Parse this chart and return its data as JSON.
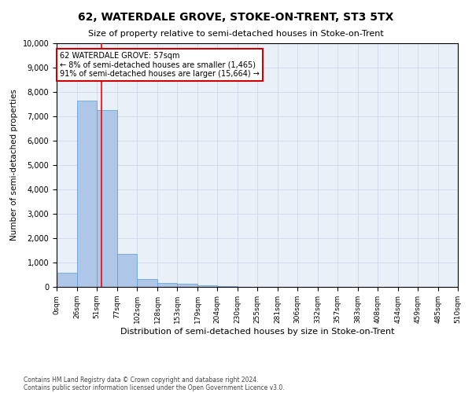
{
  "title": "62, WATERDALE GROVE, STOKE-ON-TRENT, ST3 5TX",
  "subtitle": "Size of property relative to semi-detached houses in Stoke-on-Trent",
  "xlabel": "Distribution of semi-detached houses by size in Stoke-on-Trent",
  "ylabel": "Number of semi-detached properties",
  "footer_line1": "Contains HM Land Registry data © Crown copyright and database right 2024.",
  "footer_line2": "Contains public sector information licensed under the Open Government Licence v3.0.",
  "annotation_title": "62 WATERDALE GROVE: 57sqm",
  "annotation_line1": "← 8% of semi-detached houses are smaller (1,465)",
  "annotation_line2": "91% of semi-detached houses are larger (15,664) →",
  "property_size": 57,
  "bin_edges": [
    0,
    26,
    51,
    77,
    102,
    128,
    153,
    179,
    204,
    230,
    255,
    281,
    306,
    332,
    357,
    383,
    408,
    434,
    459,
    485,
    510
  ],
  "bar_heights": [
    580,
    7650,
    7250,
    1360,
    310,
    170,
    120,
    80,
    30,
    0,
    0,
    0,
    0,
    0,
    0,
    0,
    0,
    0,
    0,
    0
  ],
  "bar_color": "#aec6e8",
  "bar_edge_color": "#5b9bd5",
  "red_line_x": 57,
  "annotation_box_color": "#ffffff",
  "annotation_box_edge_color": "#cc0000",
  "ylim": [
    0,
    10000
  ],
  "yticks": [
    0,
    1000,
    2000,
    3000,
    4000,
    5000,
    6000,
    7000,
    8000,
    9000,
    10000
  ],
  "grid_color": "#d0d8e8",
  "background_color": "#eaf0f8"
}
